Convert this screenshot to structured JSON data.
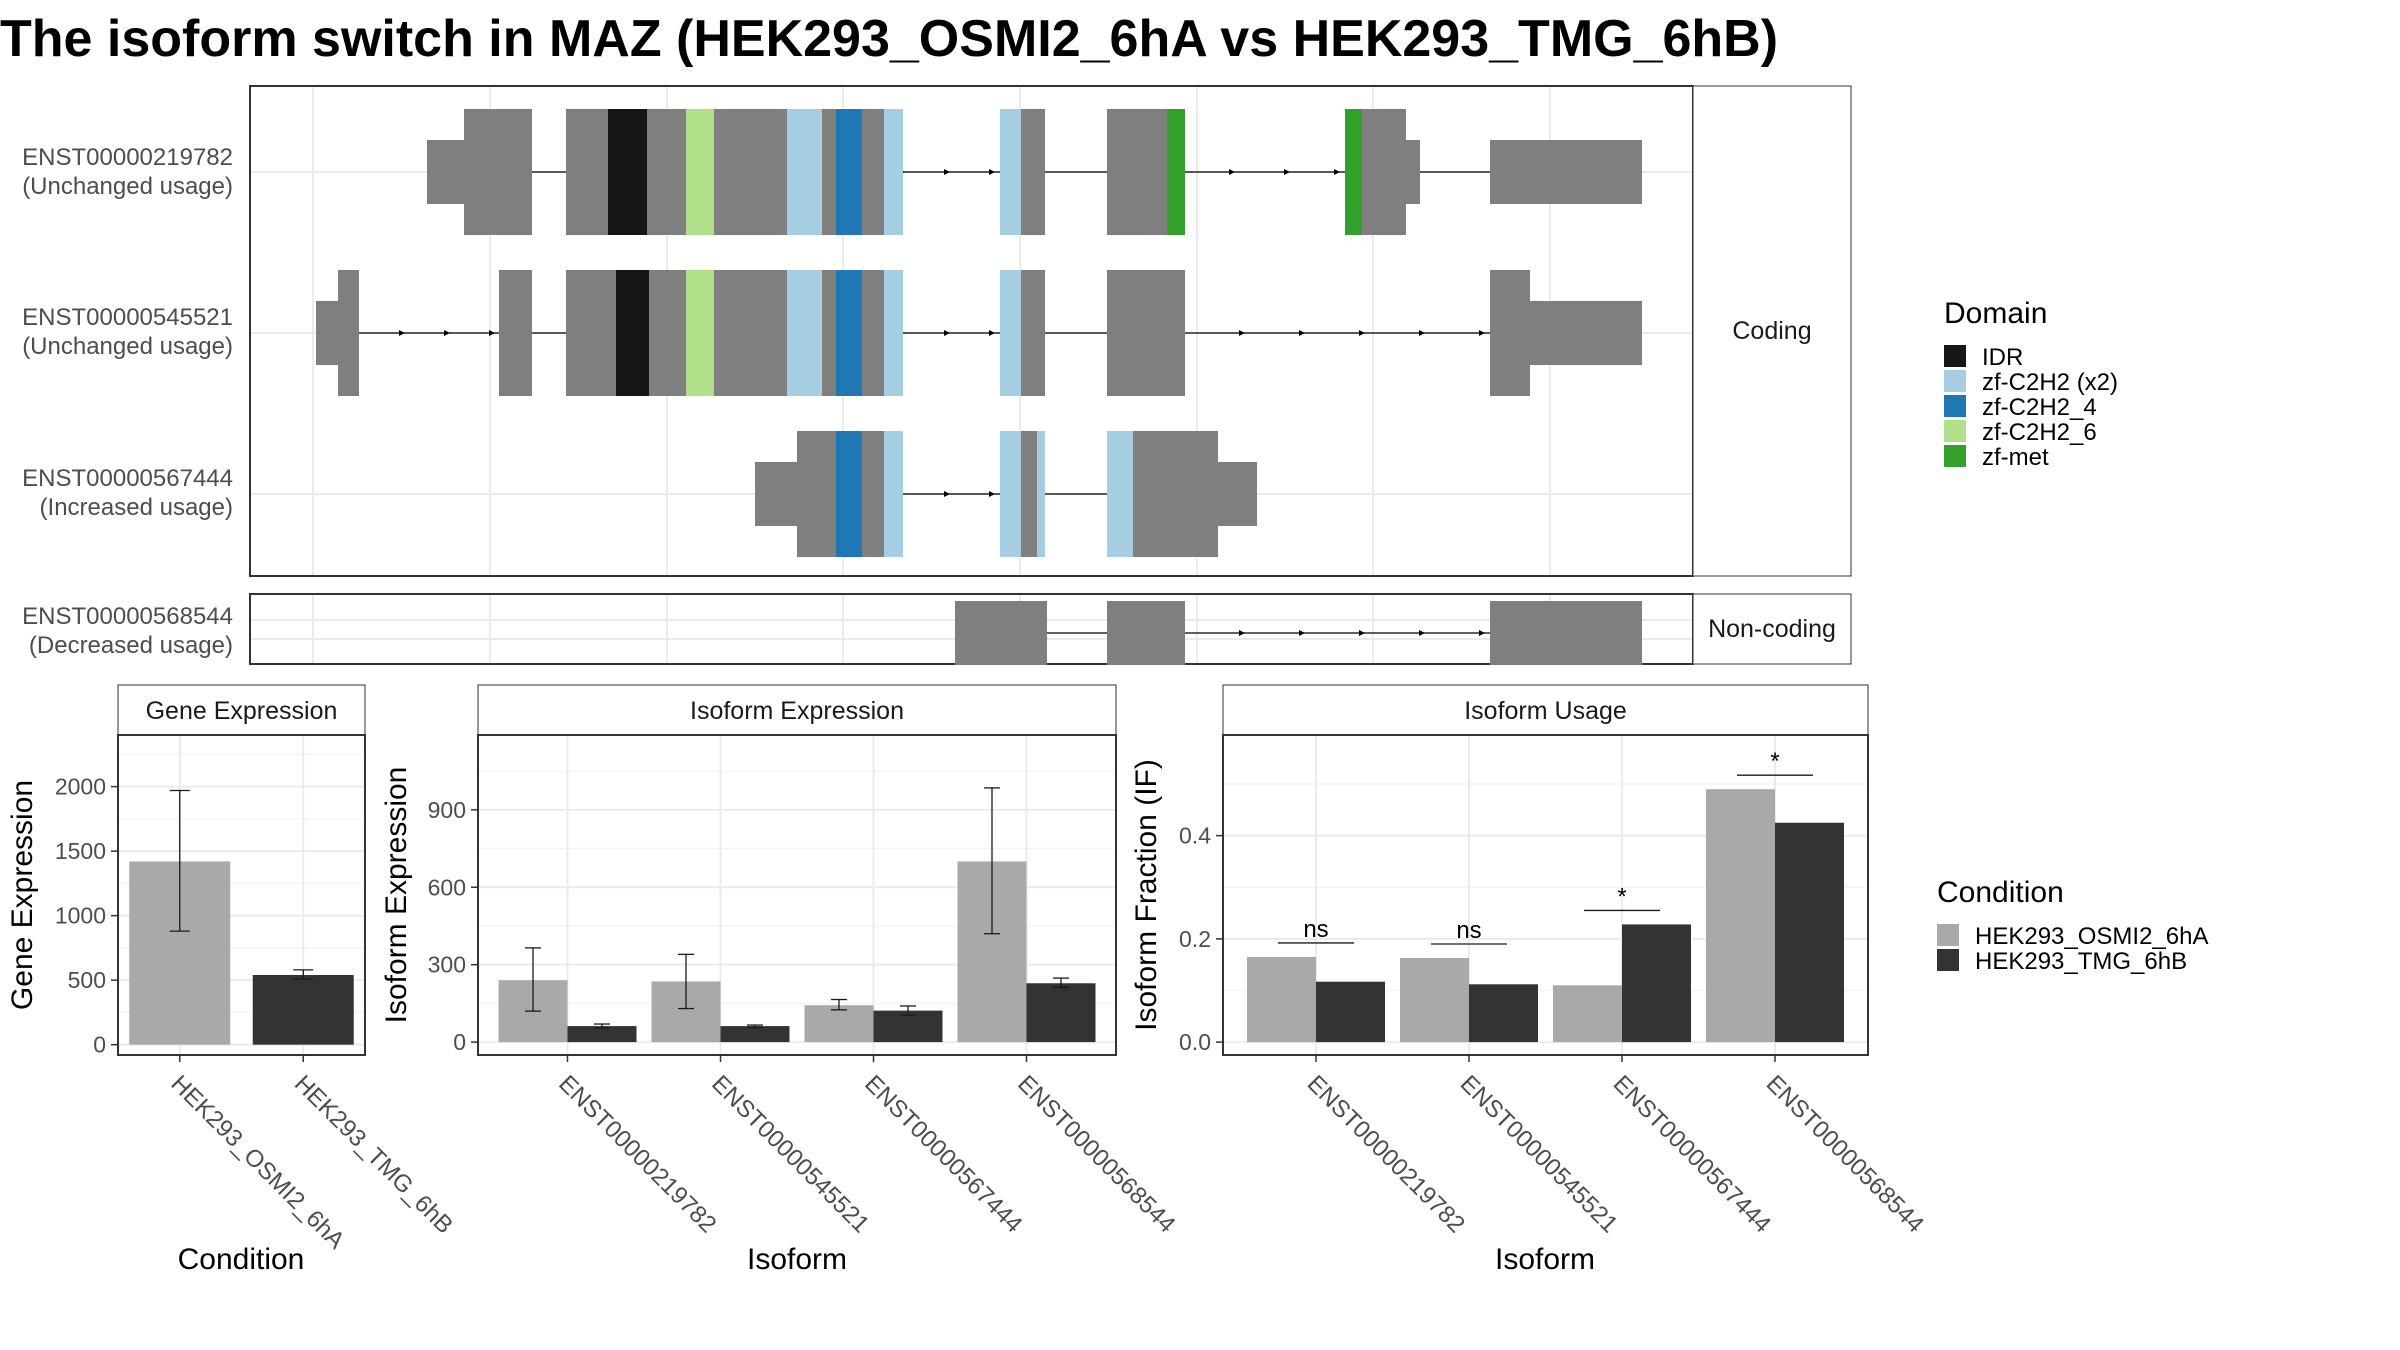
{
  "title": "The isoform switch in MAZ (HEK293_OSMI2_6hA vs HEK293_TMG_6hB)",
  "structure": {
    "transcripts": [
      {
        "id": "ENST00000219782",
        "usage": "(Unchanged usage)",
        "group": "coding"
      },
      {
        "id": "ENST00000545521",
        "usage": "(Unchanged usage)",
        "group": "coding"
      },
      {
        "id": "ENST00000567444",
        "usage": "(Increased usage)",
        "group": "coding"
      },
      {
        "id": "ENST00000568544",
        "usage": "(Decreased usage)",
        "group": "noncoding"
      }
    ],
    "group_labels": {
      "coding": "Coding",
      "noncoding": "Non-coding"
    }
  },
  "domain_legend": {
    "title": "Domain",
    "items": [
      {
        "name": "IDR",
        "color": "#161616"
      },
      {
        "name": "zf-C2H2 (x2)",
        "color": "#a6cee3"
      },
      {
        "name": "zf-C2H2_4",
        "color": "#1f78b4"
      },
      {
        "name": "zf-C2H2_6",
        "color": "#b2df8a"
      },
      {
        "name": "zf-met",
        "color": "#33a02c"
      }
    ]
  },
  "condition_legend": {
    "title": "Condition",
    "items": [
      {
        "name": "HEK293_OSMI2_6hA",
        "color": "#a9a9a9"
      },
      {
        "name": "HEK293_TMG_6hB",
        "color": "#333333"
      }
    ]
  },
  "chart_data": [
    {
      "type": "bar",
      "title": "Gene Expression",
      "xlabel": "Condition",
      "ylabel": "Gene Expression",
      "categories": [
        "HEK293_OSMI2_6hA",
        "HEK293_TMG_6hB"
      ],
      "values": [
        1420,
        540
      ],
      "errors": [
        [
          880,
          1970
        ],
        [
          510,
          580
        ]
      ],
      "ylim": [
        -80,
        2400
      ],
      "yticks": [
        0,
        500,
        1000,
        1500,
        2000
      ]
    },
    {
      "type": "bar",
      "title": "Isoform Expression",
      "xlabel": "Isoform",
      "ylabel": "Isoform Expression",
      "categories": [
        "ENST00000219782",
        "ENST00000545521",
        "ENST00000567444",
        "ENST00000568544"
      ],
      "series": [
        {
          "name": "HEK293_OSMI2_6hA",
          "values": [
            240,
            235,
            143,
            700
          ],
          "errors": [
            [
              120,
              365
            ],
            [
              130,
              340
            ],
            [
              125,
              165
            ],
            [
              420,
              985
            ]
          ]
        },
        {
          "name": "HEK293_TMG_6hB",
          "values": [
            62,
            62,
            122,
            228
          ],
          "errors": [
            [
              55,
              70
            ],
            [
              57,
              66
            ],
            [
              104,
              140
            ],
            [
              212,
              248
            ]
          ]
        }
      ],
      "ylim": [
        -50,
        1190
      ],
      "yticks": [
        0,
        300,
        600,
        900
      ]
    },
    {
      "type": "bar",
      "title": "Isoform Usage",
      "xlabel": "Isoform",
      "ylabel": "Isoform Fraction (IF)",
      "categories": [
        "ENST00000219782",
        "ENST00000545521",
        "ENST00000567444",
        "ENST00000568544"
      ],
      "series": [
        {
          "name": "HEK293_OSMI2_6hA",
          "values": [
            0.165,
            0.163,
            0.11,
            0.49
          ]
        },
        {
          "name": "HEK293_TMG_6hB",
          "values": [
            0.117,
            0.112,
            0.228,
            0.425
          ]
        }
      ],
      "significance": [
        "ns",
        "ns",
        "*",
        "*"
      ],
      "ylim": [
        -0.025,
        0.595
      ],
      "yticks": [
        0.0,
        0.2,
        0.4
      ],
      "ytick_labels": [
        "0.0",
        "0.2",
        "0.4"
      ]
    }
  ]
}
